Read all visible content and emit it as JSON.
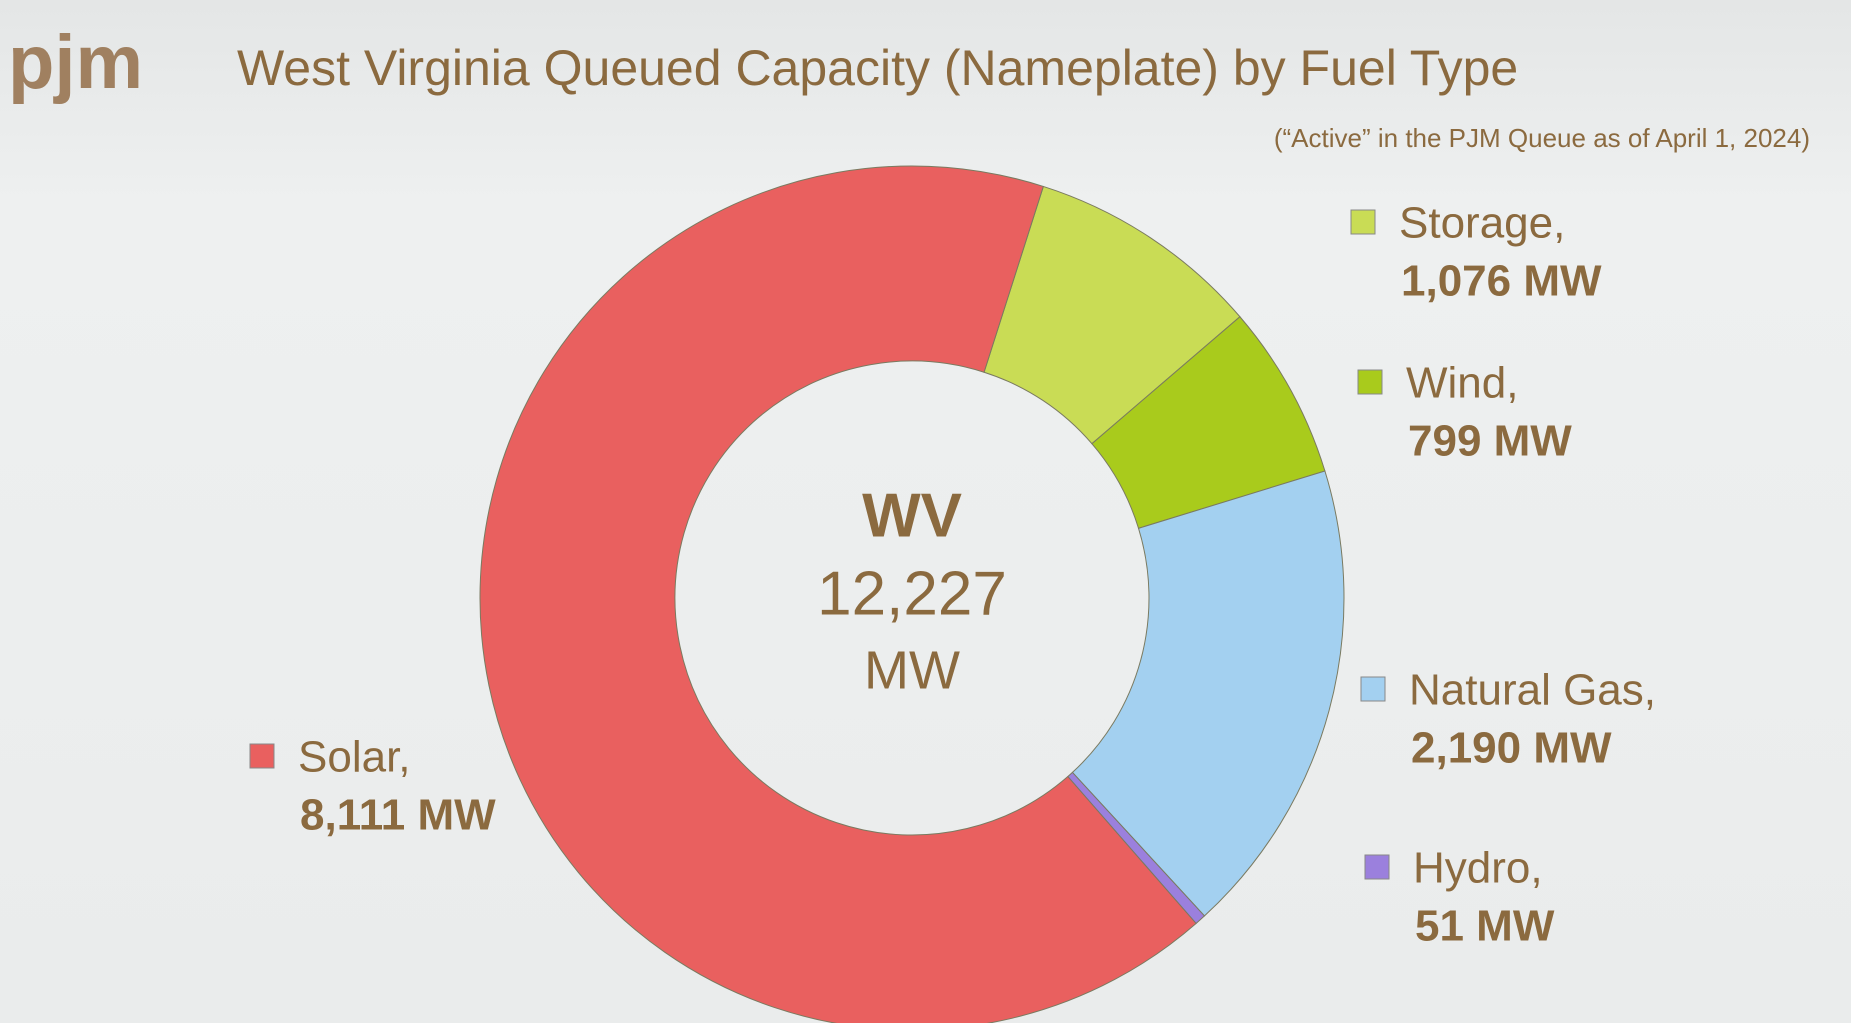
{
  "logo": "pjm",
  "chart_data": {
    "type": "donut",
    "title": "West Virginia Queued Capacity (Nameplate) by Fuel Type",
    "subtitle": "(“Active” in the PJM Queue as of April 1, 2024)",
    "categories": [
      "Storage,",
      "Wind,",
      "Natural Gas,",
      "Hydro,",
      "Solar,"
    ],
    "values": [
      1076,
      799,
      2190,
      51,
      8111
    ],
    "value_labels": [
      "1,076 MW",
      "799 MW",
      "2,190 MW",
      "51 MW",
      "8,111 MW"
    ],
    "colors": [
      "#c9dc55",
      "#a9cb1c",
      "#a3d0f0",
      "#9b80dd",
      "#e9605f"
    ],
    "center": {
      "title": "WV",
      "value_label": "12,227",
      "unit": "MW"
    }
  }
}
